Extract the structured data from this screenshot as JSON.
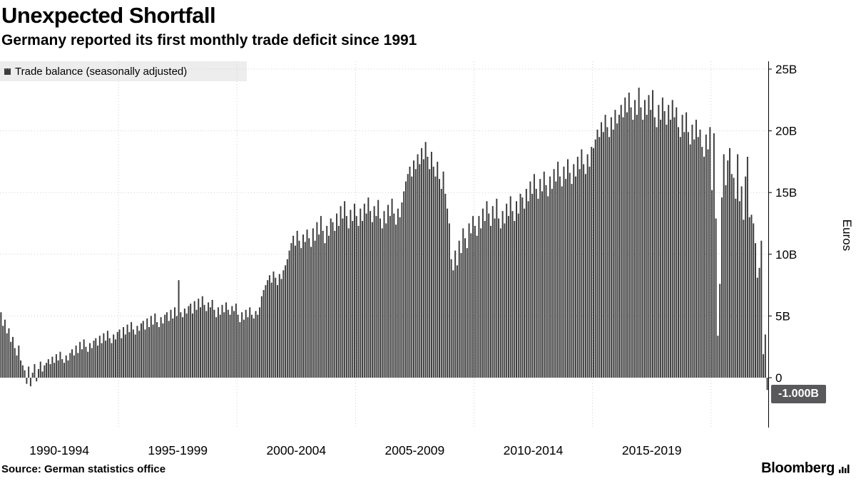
{
  "header": {
    "title": "Unexpected Shortfall",
    "subtitle": "Germany reported its first monthly trade deficit since 1991"
  },
  "legend": {
    "label": "Trade balance (seasonally adjusted)"
  },
  "footer": {
    "source": "Source: German statistics office",
    "brand": "Bloomberg"
  },
  "chart_data": {
    "type": "bar",
    "title": "Unexpected Shortfall",
    "subtitle": "Germany reported its first monthly trade deficit since 1991",
    "series_name": "Trade balance (seasonally adjusted)",
    "unit": "billion EUR",
    "ylabel": "Euros",
    "x_start": "1990-01",
    "x_end": "2022-05",
    "categories": [
      "1990-1994",
      "1995-1999",
      "2000-2004",
      "2005-2009",
      "2010-2014",
      "2015-2019"
    ],
    "yticks": [
      0,
      5,
      10,
      15,
      20,
      25
    ],
    "ytick_labels": [
      "0",
      "5B",
      "10B",
      "15B",
      "20B",
      "25B"
    ],
    "ylim": [
      -4,
      25.6
    ],
    "grid": true,
    "legend_position": "top-left",
    "bar_color": "#3d3d3d",
    "annotation": {
      "label": "-1.000B",
      "value": -1.0,
      "x": "2022-05"
    },
    "values": [
      5.3,
      4.2,
      4.7,
      3.6,
      4.0,
      2.9,
      3.3,
      2.4,
      1.8,
      2.6,
      1.4,
      1.0,
      0.6,
      -0.5,
      0.9,
      -0.7,
      0.4,
      1.1,
      -0.3,
      0.7,
      1.3,
      0.5,
      1.0,
      1.2,
      1.5,
      1.1,
      1.7,
      1.2,
      1.9,
      1.4,
      2.1,
      1.5,
      1.2,
      1.8,
      1.4,
      2.0,
      2.3,
      1.8,
      2.6,
      2.0,
      2.9,
      2.3,
      3.1,
      2.5,
      2.1,
      2.8,
      2.4,
      3.0,
      3.2,
      2.6,
      3.4,
      2.8,
      3.6,
      3.0,
      3.8,
      3.2,
      2.8,
      3.5,
      3.1,
      3.7,
      3.9,
      3.2,
      4.1,
      3.5,
      4.3,
      3.7,
      4.5,
      3.9,
      3.5,
      4.2,
      3.8,
      4.4,
      4.6,
      3.9,
      4.8,
      4.1,
      5.0,
      4.3,
      5.2,
      4.5,
      4.1,
      4.9,
      4.4,
      5.1,
      5.3,
      4.6,
      5.5,
      4.8,
      5.7,
      5.0,
      7.9,
      5.3,
      4.9,
      5.6,
      5.2,
      5.8,
      6.0,
      5.2,
      6.2,
      5.5,
      6.4,
      5.7,
      6.6,
      5.9,
      5.4,
      6.1,
      5.7,
      6.3,
      5.5,
      4.9,
      5.7,
      5.1,
      5.9,
      5.3,
      6.1,
      5.5,
      5.1,
      5.8,
      5.4,
      6.0,
      5.1,
      4.5,
      5.3,
      4.7,
      5.5,
      4.9,
      5.7,
      5.1,
      4.8,
      5.4,
      5.1,
      5.7,
      6.6,
      7.1,
      7.5,
      7.9,
      8.3,
      7.7,
      8.6,
      8.1,
      7.5,
      8.4,
      8.0,
      8.7,
      9.1,
      9.6,
      10.3,
      10.9,
      11.5,
      10.7,
      11.9,
      11.1,
      10.5,
      11.6,
      11.0,
      12.0,
      11.3,
      10.6,
      12.1,
      11.1,
      12.6,
      11.6,
      13.1,
      11.9,
      10.9,
      12.3,
      11.5,
      12.9,
      12.6,
      11.9,
      13.3,
      12.3,
      13.9,
      12.9,
      14.3,
      13.1,
      12.1,
      13.6,
      12.7,
      14.1,
      13.1,
      12.3,
      13.7,
      12.7,
      14.1,
      13.3,
      14.6,
      13.5,
      12.6,
      13.9,
      13.1,
      14.4,
      12.9,
      12.1,
      13.5,
      12.5,
      14.0,
      13.1,
      14.5,
      13.3,
      12.4,
      13.7,
      13.0,
      14.2,
      15.1,
      15.9,
      16.5,
      17.1,
      16.3,
      17.6,
      16.9,
      18.1,
      17.3,
      18.6,
      17.7,
      19.1,
      17.9,
      16.9,
      18.3,
      17.1,
      16.3,
      17.5,
      16.1,
      15.3,
      16.7,
      14.9,
      13.7,
      12.5,
      9.6,
      8.7,
      10.3,
      9.1,
      11.1,
      10.1,
      12.1,
      11.3,
      10.5,
      12.5,
      11.7,
      13.1,
      12.3,
      11.5,
      13.1,
      12.1,
      13.7,
      12.7,
      14.3,
      13.3,
      12.3,
      13.9,
      12.9,
      14.5,
      12.9,
      12.1,
      13.5,
      12.5,
      14.1,
      13.1,
      14.7,
      13.5,
      12.7,
      14.3,
      13.3,
      14.9,
      14.6,
      13.7,
      15.3,
      14.3,
      15.9,
      14.9,
      16.5,
      15.3,
      14.5,
      16.1,
      15.1,
      16.7,
      15.6,
      14.7,
      16.3,
      15.3,
      16.9,
      15.9,
      17.5,
      16.3,
      15.5,
      17.1,
      16.1,
      17.7,
      16.6,
      15.7,
      17.3,
      16.3,
      17.9,
      16.9,
      18.5,
      17.3,
      16.5,
      18.1,
      17.1,
      18.7,
      18.6,
      19.3,
      20.1,
      19.5,
      20.7,
      19.9,
      21.3,
      20.3,
      19.5,
      21.1,
      20.1,
      21.7,
      20.6,
      21.3,
      22.1,
      21.1,
      22.7,
      21.5,
      23.1,
      21.9,
      20.9,
      22.5,
      21.3,
      23.5,
      21.9,
      20.9,
      22.5,
      21.3,
      22.9,
      21.7,
      23.3,
      21.1,
      20.3,
      22.1,
      20.9,
      22.7,
      21.6,
      20.5,
      22.1,
      20.9,
      22.5,
      21.1,
      21.9,
      20.3,
      19.5,
      21.3,
      19.9,
      21.5,
      19.9,
      18.9,
      20.5,
      19.3,
      20.9,
      19.5,
      20.1,
      18.7,
      17.9,
      19.7,
      18.5,
      20.3,
      15.2,
      19.8,
      12.9,
      3.4,
      7.6,
      14.6,
      18.1,
      15.6,
      17.6,
      18.6,
      16.5,
      16.2,
      14.5,
      18.1,
      14.3,
      15.5,
      12.8,
      16.3,
      17.9,
      13.0,
      13.2,
      12.5,
      10.9,
      8.1,
      8.9,
      11.1,
      1.9,
      3.5,
      -1.0
    ]
  }
}
